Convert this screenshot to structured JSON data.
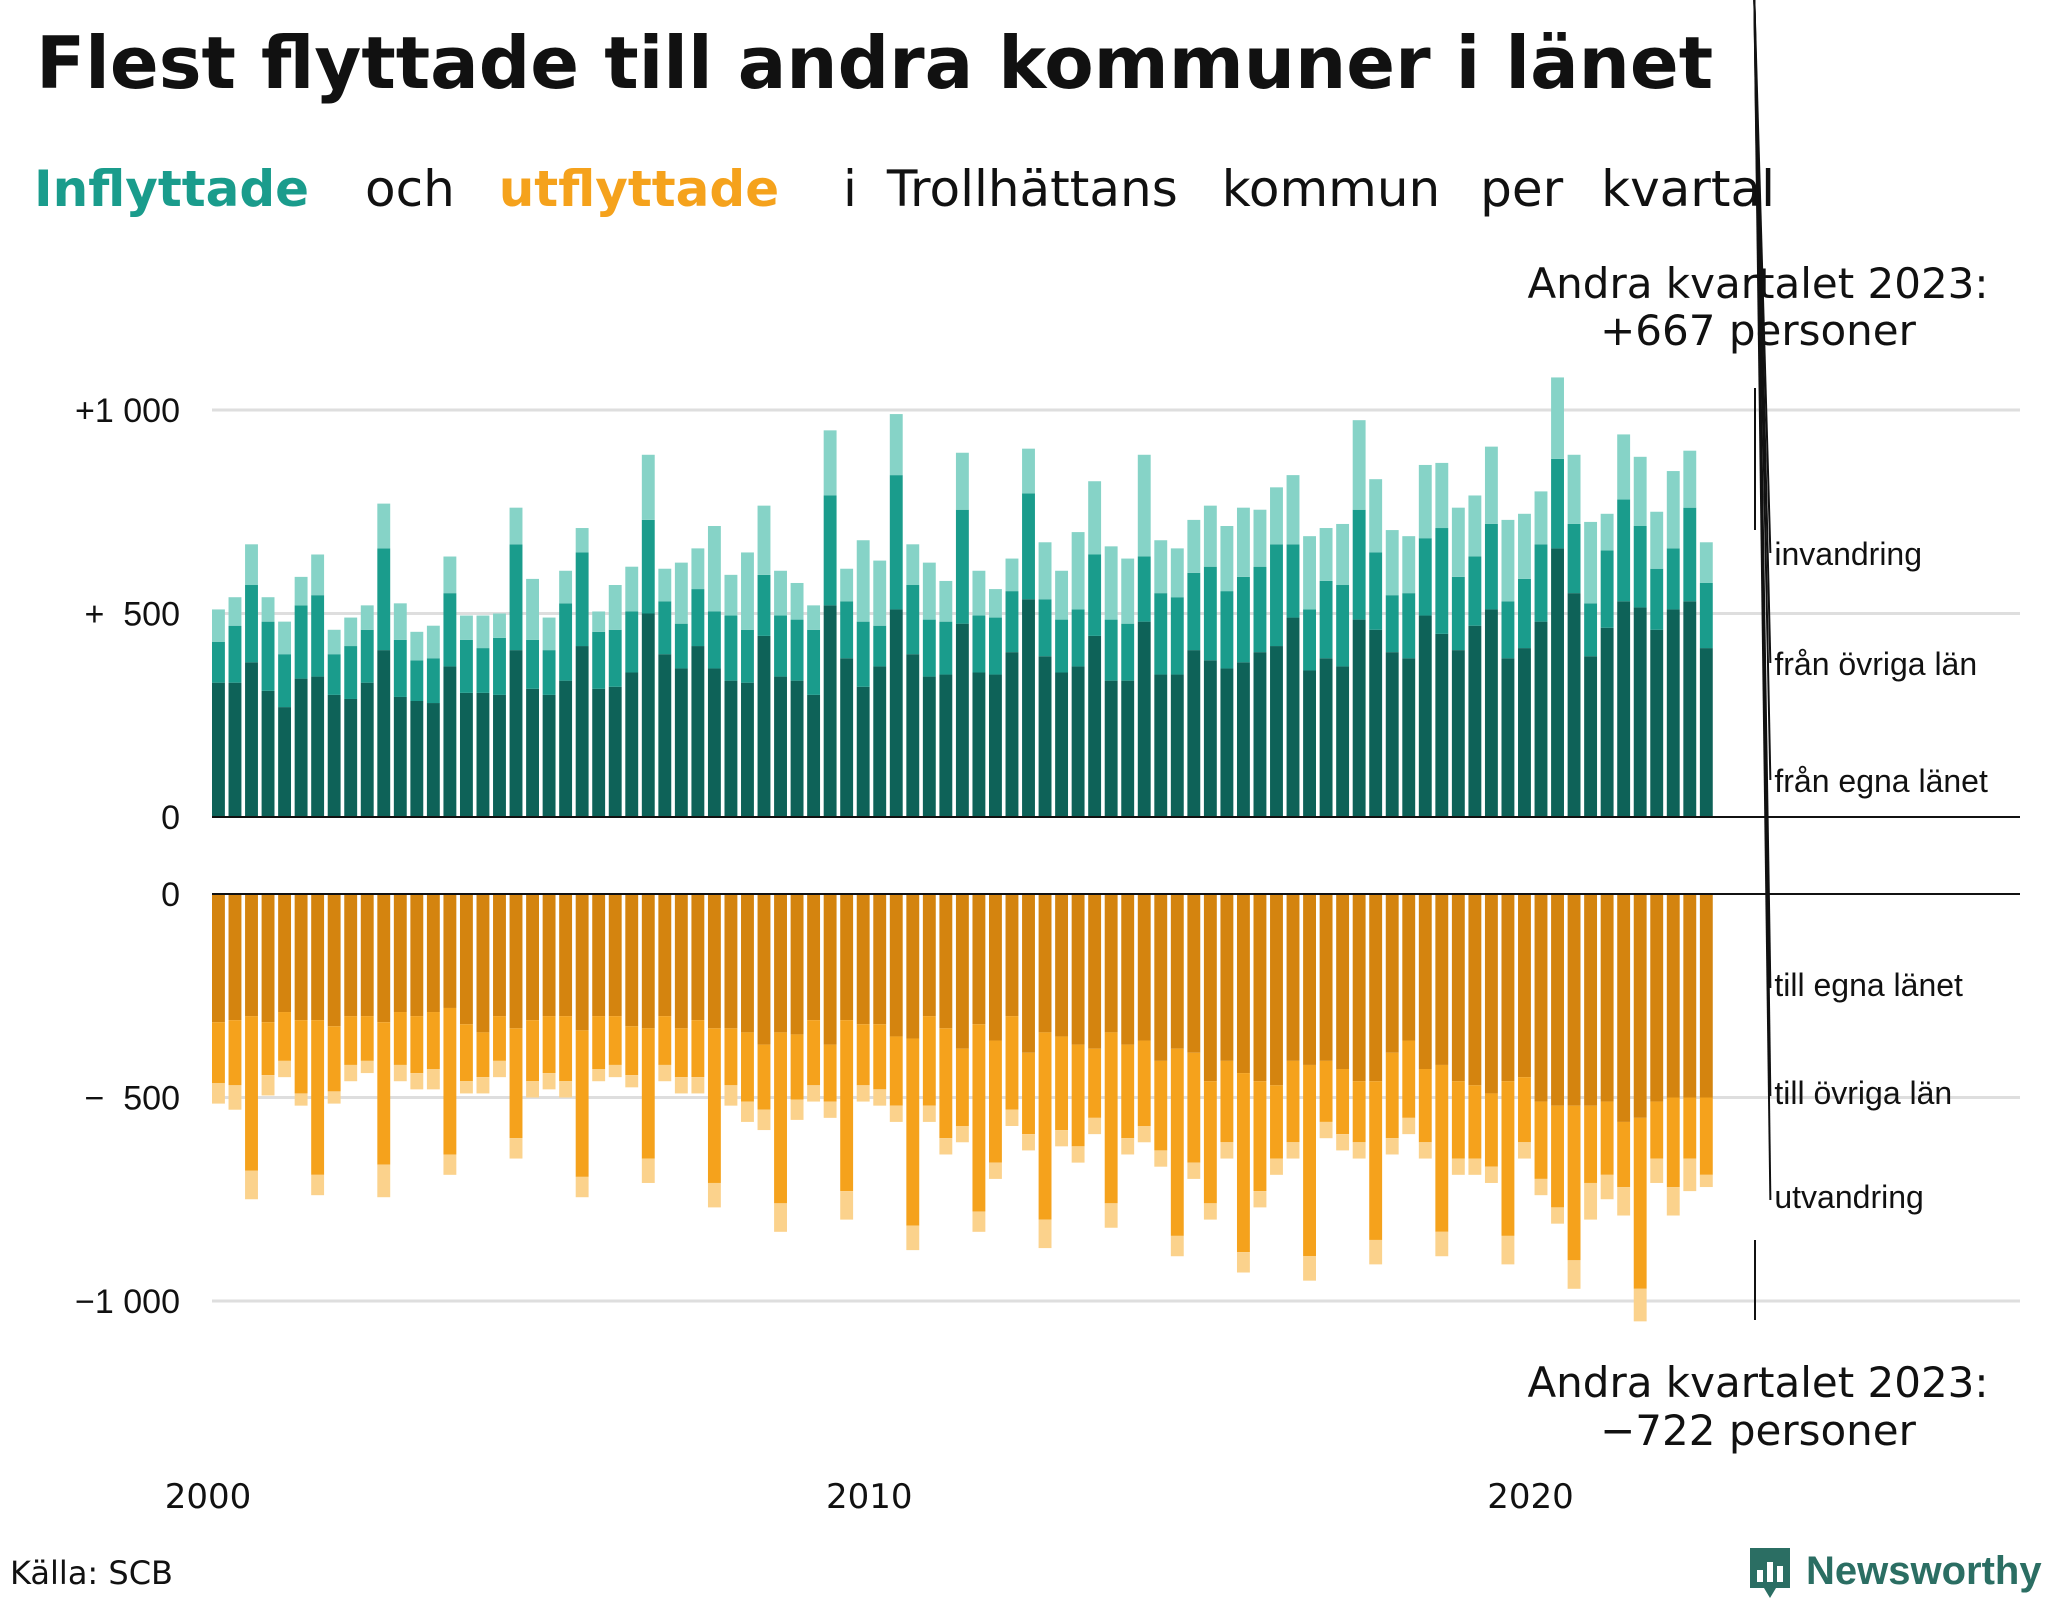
{
  "title": "Flest flyttade till andra kommuner i länet",
  "subtitle": {
    "in_word": "Inflyttade",
    "and": "och",
    "out_word": "utflyttade",
    "rest_1": "i",
    "rest_2": "Trollhättans",
    "rest_3": "kommun",
    "rest_4": "per",
    "rest_5": "kvartal"
  },
  "annotation_top": {
    "line1": "Andra kvartalet 2023:",
    "line2": "+667 personer"
  },
  "annotation_bottom": {
    "line1": "Andra kvartalet 2023:",
    "line2": "−722 personer"
  },
  "source": "Källa: SCB",
  "brand": "Newsworthy",
  "colors": {
    "in_own": "#0e6258",
    "in_other": "#1a9c8c",
    "in_immig": "#86d3c7",
    "out_own": "#d4840f",
    "out_other": "#f5a21c",
    "out_emig": "#fbd28c"
  },
  "chart_data": {
    "type": "bar",
    "stacked": true,
    "x_start": "2000 Q1",
    "x_end": "2023 Q2",
    "x_tick_labels": [
      "2000",
      "2010",
      "2020"
    ],
    "y_tick_labels_top": [
      "+1 000",
      "+  500",
      "0"
    ],
    "y_tick_labels_bottom": [
      "0",
      "−  500",
      "−1 000"
    ],
    "ylim": [
      -1000,
      1000
    ],
    "grid": true,
    "series": [
      {
        "name": "från egna länet",
        "group": "in",
        "values": [
          330,
          330,
          380,
          310,
          270,
          340,
          345,
          300,
          290,
          330,
          410,
          295,
          285,
          280,
          370,
          305,
          305,
          300,
          410,
          315,
          300,
          335,
          420,
          315,
          320,
          355,
          500,
          400,
          365,
          420,
          365,
          335,
          330,
          445,
          345,
          335,
          300,
          520,
          390,
          320,
          370,
          510,
          400,
          345,
          350,
          475,
          355,
          350,
          405,
          535,
          395,
          355,
          370,
          445,
          335,
          335,
          480,
          350,
          350,
          410,
          385,
          365,
          380,
          405,
          420,
          490,
          360,
          390,
          370,
          485,
          460,
          405,
          390,
          495,
          450,
          410,
          470,
          510,
          390,
          415,
          480,
          660,
          550,
          395,
          465,
          530,
          515,
          460,
          510,
          530,
          415
        ]
      },
      {
        "name": "från övriga län",
        "group": "in",
        "values": [
          100,
          140,
          190,
          170,
          130,
          180,
          200,
          100,
          130,
          130,
          250,
          140,
          100,
          110,
          180,
          130,
          110,
          140,
          260,
          120,
          110,
          190,
          230,
          140,
          140,
          150,
          230,
          130,
          110,
          140,
          140,
          160,
          130,
          150,
          150,
          150,
          160,
          270,
          140,
          160,
          100,
          330,
          170,
          140,
          130,
          280,
          140,
          140,
          150,
          260,
          140,
          130,
          140,
          200,
          150,
          140,
          160,
          200,
          190,
          190,
          230,
          190,
          210,
          210,
          250,
          180,
          150,
          190,
          200,
          270,
          190,
          140,
          160,
          190,
          260,
          180,
          170,
          210,
          140,
          170,
          190,
          220,
          170,
          130,
          190,
          250,
          200,
          150,
          150,
          230,
          160
        ]
      },
      {
        "name": "invandring",
        "group": "in",
        "values": [
          80,
          70,
          100,
          60,
          80,
          70,
          100,
          60,
          70,
          60,
          110,
          90,
          70,
          80,
          90,
          60,
          80,
          60,
          90,
          150,
          80,
          80,
          60,
          50,
          110,
          110,
          160,
          80,
          150,
          100,
          210,
          100,
          190,
          170,
          110,
          90,
          60,
          160,
          80,
          200,
          160,
          150,
          100,
          140,
          100,
          140,
          110,
          70,
          80,
          110,
          140,
          120,
          190,
          180,
          180,
          160,
          250,
          130,
          120,
          130,
          150,
          160,
          170,
          140,
          140,
          170,
          180,
          130,
          150,
          220,
          180,
          160,
          140,
          180,
          160,
          170,
          150,
          190,
          200,
          160,
          130,
          200,
          170,
          200,
          90,
          160,
          170,
          140,
          190,
          140,
          100
        ]
      },
      {
        "name": "till egna länet",
        "group": "out",
        "values": [
          -315,
          -310,
          -300,
          -315,
          -290,
          -310,
          -310,
          -325,
          -300,
          -300,
          -315,
          -290,
          -300,
          -290,
          -280,
          -320,
          -340,
          -300,
          -330,
          -310,
          -300,
          -300,
          -335,
          -300,
          -300,
          -325,
          -330,
          -300,
          -330,
          -310,
          -330,
          -330,
          -340,
          -370,
          -340,
          -345,
          -310,
          -370,
          -310,
          -320,
          -320,
          -350,
          -355,
          -300,
          -330,
          -380,
          -320,
          -360,
          -300,
          -390,
          -340,
          -350,
          -370,
          -380,
          -340,
          -370,
          -360,
          -410,
          -380,
          -390,
          -460,
          -410,
          -440,
          -460,
          -470,
          -410,
          -420,
          -410,
          -430,
          -460,
          -460,
          -390,
          -360,
          -430,
          -420,
          -460,
          -470,
          -490,
          -460,
          -450,
          -510,
          -520,
          -520,
          -520,
          -510,
          -560,
          -550,
          -510,
          -500,
          -500,
          -500
        ]
      },
      {
        "name": "till övriga län",
        "group": "out",
        "values": [
          -150,
          -160,
          -380,
          -130,
          -120,
          -180,
          -380,
          -160,
          -120,
          -110,
          -350,
          -130,
          -140,
          -140,
          -360,
          -140,
          -110,
          -110,
          -270,
          -150,
          -140,
          -160,
          -360,
          -130,
          -120,
          -120,
          -320,
          -120,
          -120,
          -140,
          -380,
          -140,
          -170,
          -160,
          -420,
          -160,
          -160,
          -140,
          -420,
          -150,
          -160,
          -170,
          -460,
          -220,
          -270,
          -190,
          -460,
          -300,
          -230,
          -200,
          -460,
          -230,
          -250,
          -170,
          -420,
          -230,
          -210,
          -220,
          -460,
          -270,
          -300,
          -200,
          -440,
          -270,
          -180,
          -200,
          -470,
          -150,
          -160,
          -150,
          -390,
          -210,
          -190,
          -180,
          -410,
          -190,
          -180,
          -180,
          -380,
          -160,
          -190,
          -250,
          -380,
          -190,
          -180,
          -160,
          -420,
          -140,
          -220,
          -150,
          -190
        ]
      },
      {
        "name": "utvandring",
        "group": "out",
        "values": [
          -50,
          -60,
          -70,
          -50,
          -40,
          -30,
          -50,
          -30,
          -40,
          -30,
          -80,
          -40,
          -40,
          -50,
          -50,
          -30,
          -40,
          -40,
          -50,
          -40,
          -40,
          -40,
          -50,
          -30,
          -30,
          -30,
          -60,
          -40,
          -40,
          -40,
          -60,
          -50,
          -50,
          -50,
          -70,
          -50,
          -40,
          -40,
          -70,
          -40,
          -40,
          -40,
          -60,
          -40,
          -40,
          -40,
          -50,
          -40,
          -40,
          -40,
          -70,
          -40,
          -40,
          -40,
          -60,
          -40,
          -40,
          -40,
          -50,
          -40,
          -40,
          -40,
          -50,
          -40,
          -40,
          -40,
          -60,
          -40,
          -40,
          -40,
          -60,
          -40,
          -40,
          -40,
          -60,
          -40,
          -40,
          -40,
          -70,
          -40,
          -40,
          -40,
          -70,
          -90,
          -60,
          -70,
          -80,
          -60,
          -70,
          -80,
          -30
        ]
      }
    ]
  }
}
